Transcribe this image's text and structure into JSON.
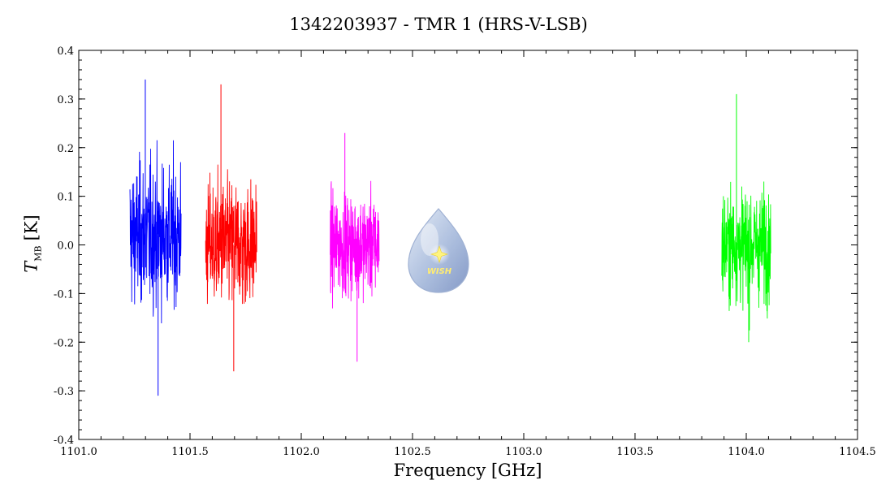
{
  "chart_data": {
    "type": "line",
    "title": "1342203937 - TMR 1 (HRS-V-LSB)",
    "xlabel": "Frequency [GHz]",
    "ylabel": {
      "symbol": "T",
      "subscript": "MB",
      "unit": "[K]"
    },
    "xlim": [
      1101.0,
      1104.5
    ],
    "ylim": [
      -0.4,
      0.4
    ],
    "x_ticks": [
      1101.0,
      1101.5,
      1102.0,
      1102.5,
      1103.0,
      1103.5,
      1104.0,
      1104.5
    ],
    "x_tick_labels": [
      "1101.0",
      "1101.5",
      "1102.0",
      "1102.5",
      "1103.0",
      "1103.5",
      "1104.0",
      "1104.5"
    ],
    "y_ticks": [
      -0.4,
      -0.3,
      -0.2,
      -0.1,
      0.0,
      0.1,
      0.2,
      0.3,
      0.4
    ],
    "y_tick_labels": [
      "-0.4",
      "-0.3",
      "-0.2",
      "-0.1",
      "0.0",
      "0.1",
      "0.2",
      "0.3",
      "0.4"
    ],
    "grid": false,
    "series": [
      {
        "color": "#0000ff",
        "x_range": [
          1101.23,
          1101.46
        ],
        "baseline": 0.02,
        "min": -0.31,
        "max": 0.34
      },
      {
        "color": "#ff0000",
        "x_range": [
          1101.57,
          1101.8
        ],
        "baseline": 0.0,
        "min": -0.26,
        "max": 0.33
      },
      {
        "color": "#ff00ff",
        "x_range": [
          1102.13,
          1102.35
        ],
        "baseline": 0.0,
        "min": -0.24,
        "max": 0.23
      },
      {
        "color": "#00ff00",
        "x_range": [
          1103.89,
          1104.11
        ],
        "baseline": 0.0,
        "min": -0.2,
        "max": 0.31
      }
    ]
  },
  "logo": {
    "text": "WISH"
  }
}
